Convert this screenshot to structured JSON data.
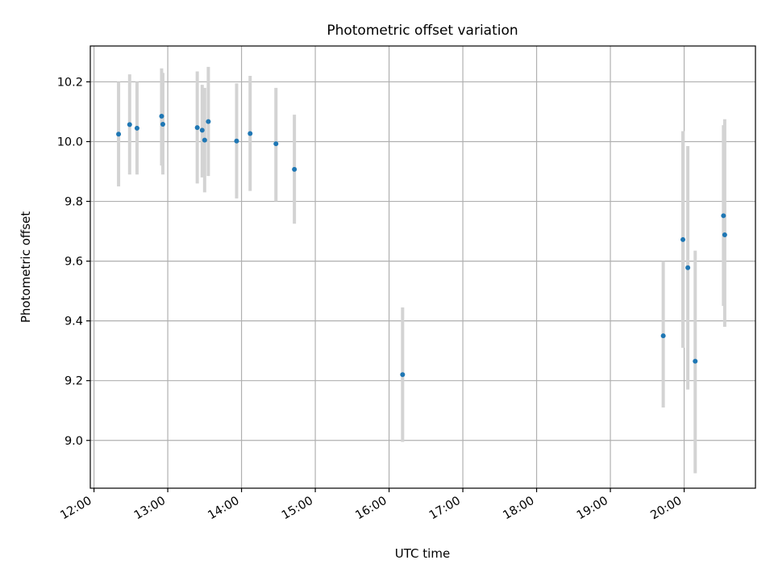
{
  "chart_data": {
    "type": "scatter",
    "title": "Photometric offset variation",
    "xlabel": "UTC time",
    "ylabel": "Photometric offset",
    "xlim": [
      "11:57",
      "20:58"
    ],
    "ylim": [
      8.84,
      10.32
    ],
    "xticks": [
      "12:00",
      "13:00",
      "14:00",
      "15:00",
      "16:00",
      "17:00",
      "18:00",
      "19:00",
      "20:00"
    ],
    "yticks": [
      "9.0",
      "9.2",
      "9.4",
      "9.6",
      "9.8",
      "10.0",
      "10.2"
    ],
    "grid": true,
    "colors": {
      "points": "#1f77b4",
      "errorbars": "#d3d3d3",
      "grid": "#b0b0b0"
    },
    "points": [
      {
        "x": "12:20",
        "y": 10.025,
        "ylow": 9.85,
        "yhigh": 10.2
      },
      {
        "x": "12:29",
        "y": 10.057,
        "ylow": 9.89,
        "yhigh": 10.225
      },
      {
        "x": "12:35",
        "y": 10.045,
        "ylow": 9.89,
        "yhigh": 10.2
      },
      {
        "x": "12:55",
        "y": 10.085,
        "ylow": 9.92,
        "yhigh": 10.245
      },
      {
        "x": "12:56",
        "y": 10.058,
        "ylow": 9.89,
        "yhigh": 10.23
      },
      {
        "x": "13:24",
        "y": 10.047,
        "ylow": 9.86,
        "yhigh": 10.235
      },
      {
        "x": "13:28",
        "y": 10.038,
        "ylow": 9.88,
        "yhigh": 10.19
      },
      {
        "x": "13:30",
        "y": 10.005,
        "ylow": 9.83,
        "yhigh": 10.18
      },
      {
        "x": "13:33",
        "y": 10.067,
        "ylow": 9.885,
        "yhigh": 10.25
      },
      {
        "x": "13:56",
        "y": 10.002,
        "ylow": 9.81,
        "yhigh": 10.195
      },
      {
        "x": "14:07",
        "y": 10.027,
        "ylow": 9.835,
        "yhigh": 10.22
      },
      {
        "x": "14:28",
        "y": 9.993,
        "ylow": 9.8,
        "yhigh": 10.18
      },
      {
        "x": "14:43",
        "y": 9.907,
        "ylow": 9.725,
        "yhigh": 10.09
      },
      {
        "x": "16:11",
        "y": 9.22,
        "ylow": 8.995,
        "yhigh": 9.445
      },
      {
        "x": "19:43",
        "y": 9.35,
        "ylow": 9.11,
        "yhigh": 9.6
      },
      {
        "x": "19:59",
        "y": 9.672,
        "ylow": 9.31,
        "yhigh": 10.035
      },
      {
        "x": "20:03",
        "y": 9.578,
        "ylow": 9.17,
        "yhigh": 9.985
      },
      {
        "x": "20:09",
        "y": 9.265,
        "ylow": 8.89,
        "yhigh": 9.635
      },
      {
        "x": "20:32",
        "y": 9.752,
        "ylow": 9.45,
        "yhigh": 10.055
      },
      {
        "x": "20:33",
        "y": 9.688,
        "ylow": 9.38,
        "yhigh": 10.075
      }
    ]
  }
}
